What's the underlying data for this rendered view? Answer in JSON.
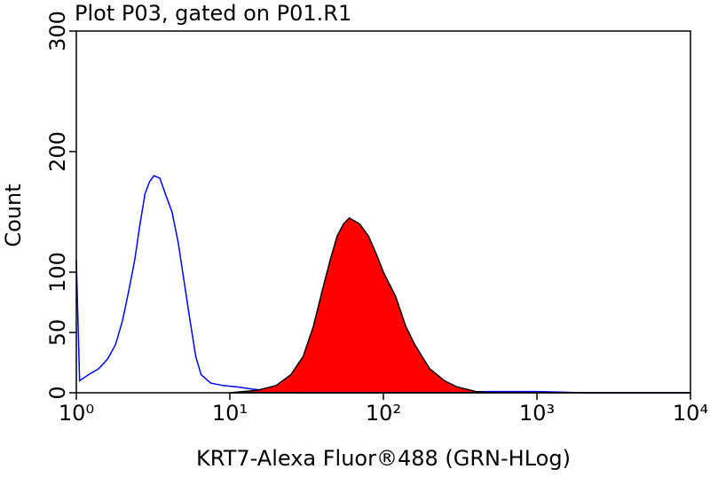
{
  "chart_data": {
    "type": "line",
    "title": "Plot P03, gated on P01.R1",
    "xlabel": "KRT7-Alexa Fluor®488 (GRN-HLog)",
    "ylabel": "Count",
    "xscale": "log",
    "xlim": [
      1,
      10000
    ],
    "xticks": [
      {
        "value": 1,
        "label": "10⁰"
      },
      {
        "value": 10,
        "label": "10¹"
      },
      {
        "value": 100,
        "label": "10²"
      },
      {
        "value": 1000,
        "label": "10³"
      },
      {
        "value": 10000,
        "label": "10⁴"
      }
    ],
    "ylim": [
      0,
      300
    ],
    "yticks": [
      0,
      50,
      100,
      200,
      300
    ],
    "series": [
      {
        "style": "line",
        "color": "#0000ff",
        "x": [
          1,
          1.05,
          1.2,
          1.4,
          1.6,
          1.8,
          2.0,
          2.2,
          2.4,
          2.6,
          2.8,
          3.0,
          3.2,
          3.5,
          3.8,
          4.2,
          4.6,
          5.0,
          5.5,
          6.0,
          6.5,
          7.5,
          9,
          11,
          14,
          20,
          30,
          100,
          500,
          1000,
          2000,
          10000
        ],
        "values": [
          110,
          10,
          15,
          20,
          28,
          40,
          60,
          85,
          110,
          140,
          165,
          175,
          180,
          178,
          165,
          150,
          125,
          95,
          60,
          30,
          15,
          8,
          6,
          5,
          3,
          1,
          0,
          0,
          1,
          1,
          0,
          0
        ]
      },
      {
        "style": "area",
        "color": "#ff0000",
        "outline": "#000000",
        "x": [
          10,
          15,
          20,
          25,
          30,
          35,
          40,
          45,
          50,
          55,
          60,
          70,
          80,
          90,
          100,
          120,
          140,
          160,
          200,
          250,
          300,
          400,
          500,
          10000
        ],
        "values": [
          0,
          2,
          6,
          15,
          30,
          55,
          85,
          110,
          130,
          140,
          145,
          140,
          130,
          115,
          100,
          80,
          55,
          40,
          20,
          10,
          5,
          1,
          0,
          0
        ]
      }
    ]
  }
}
